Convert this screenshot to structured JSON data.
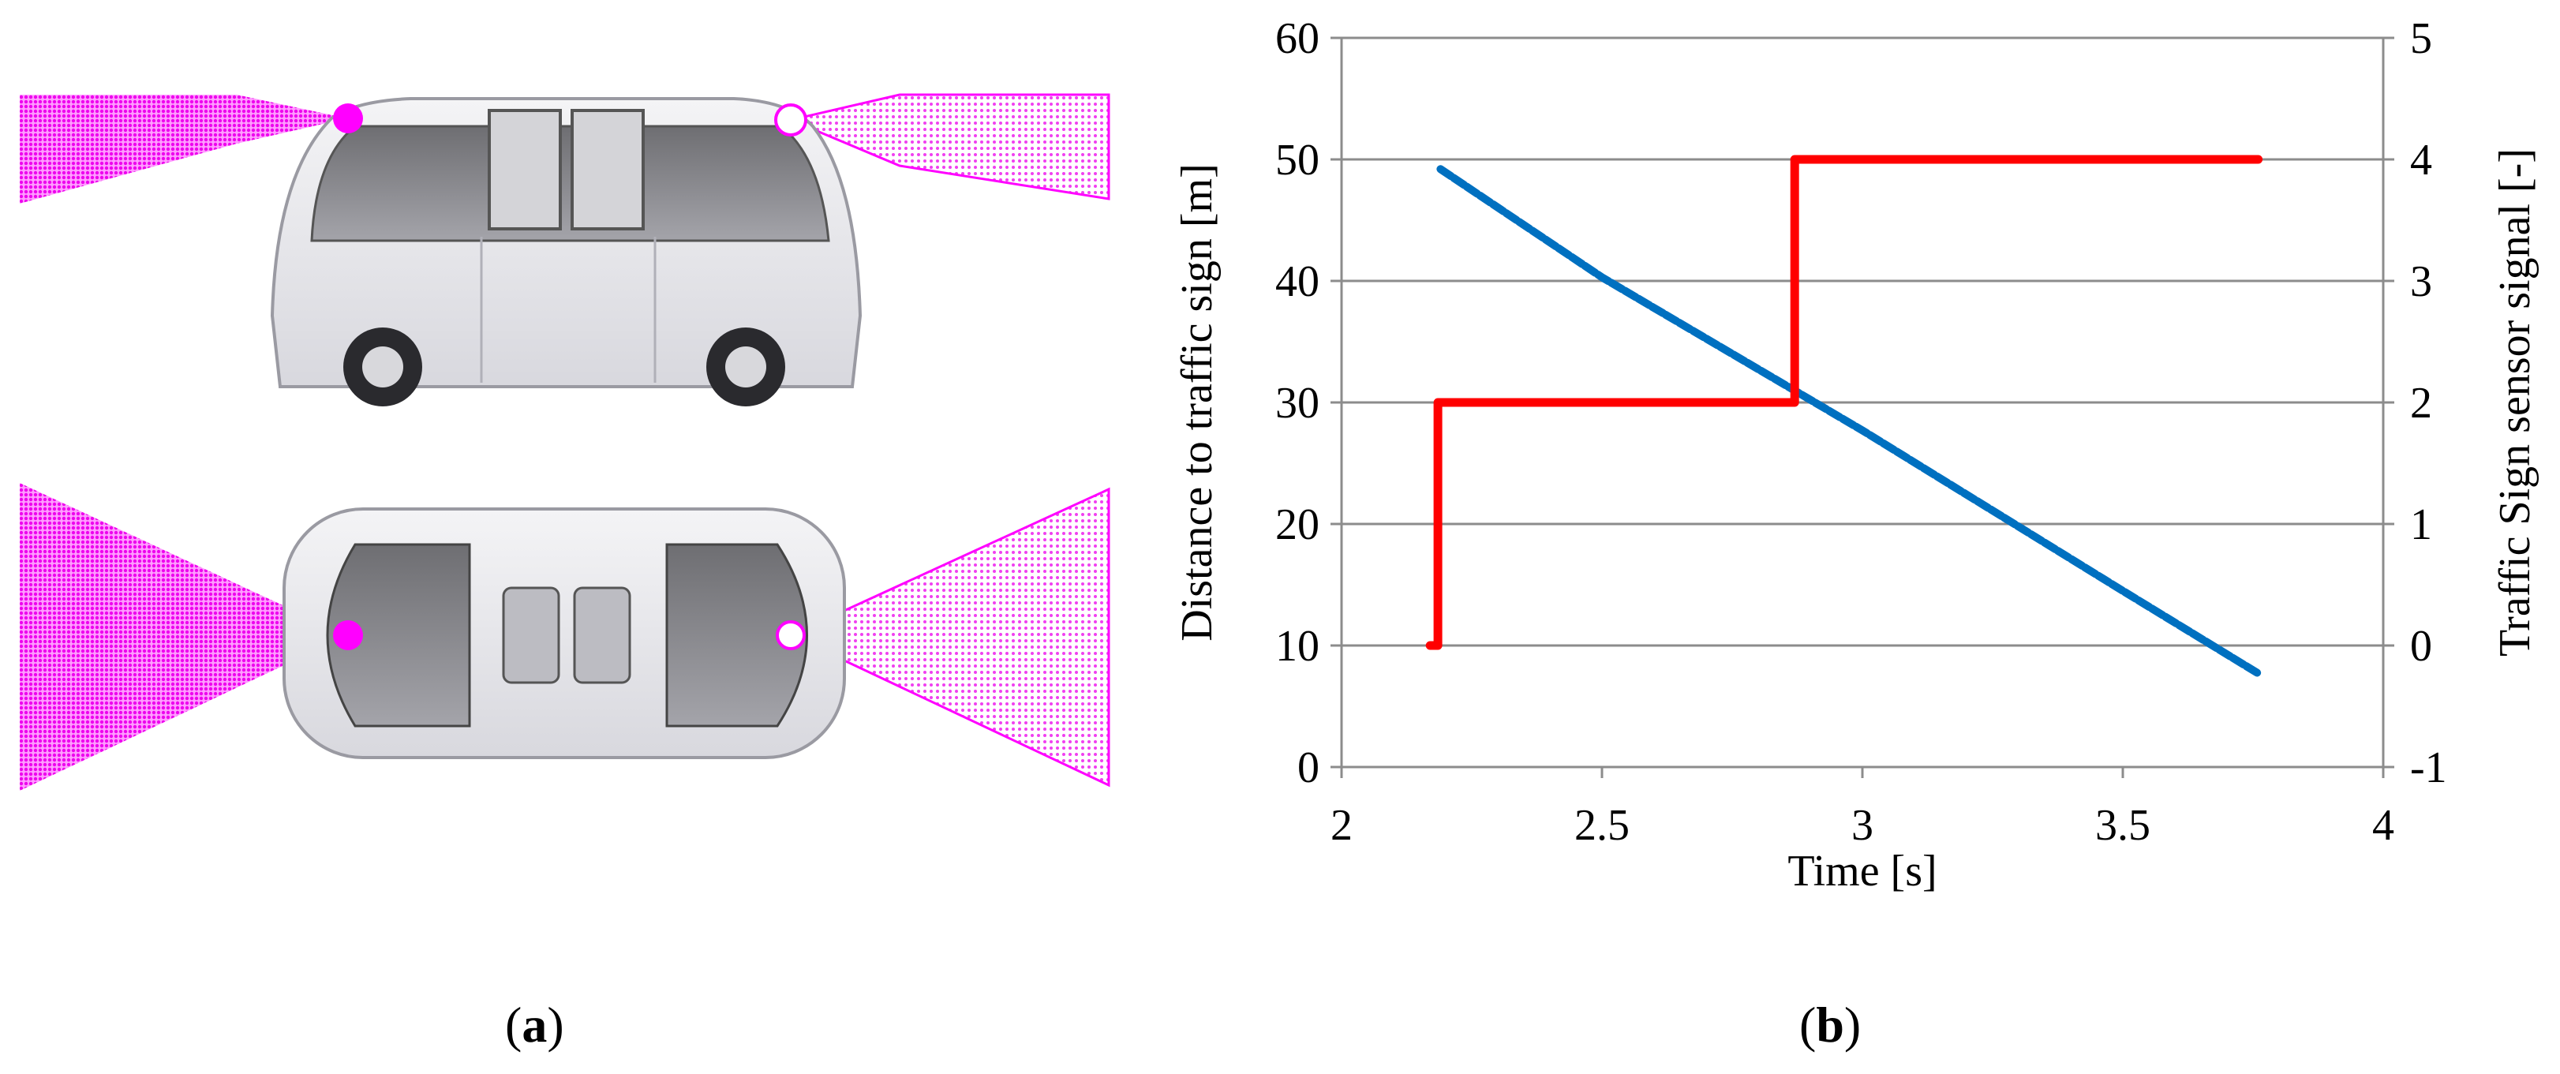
{
  "panels": {
    "a": {
      "letter": "a"
    },
    "b": {
      "letter": "b"
    }
  },
  "vehicle_illustration": {
    "views": [
      "side-view",
      "top-view"
    ],
    "sensor_color": "#ff00ff"
  },
  "chart_data": {
    "type": "line",
    "title": "",
    "xlabel": "Time [s]",
    "ylabel": "Distance to traffic sign [m]",
    "y2label": "Traffic Sign sensor signal [-]",
    "xlim": [
      2,
      4
    ],
    "ylim": [
      0,
      60
    ],
    "y2lim": [
      -1,
      5
    ],
    "x_ticks": [
      "2",
      "2.5",
      "3",
      "3.5",
      "4"
    ],
    "y_ticks": [
      "0",
      "10",
      "20",
      "30",
      "40",
      "50",
      "60"
    ],
    "y2_ticks": [
      "-1",
      "0",
      "1",
      "2",
      "3",
      "4",
      "5"
    ],
    "grid": "horizontal",
    "legend": "none",
    "series": [
      {
        "axis": "left",
        "color": "#0070c0",
        "points": [
          [
            2.19,
            49.2
          ],
          [
            2.5,
            40.3
          ],
          [
            3.0,
            27.7
          ],
          [
            3.5,
            14.5
          ],
          [
            3.76,
            7.7
          ]
        ]
      },
      {
        "axis": "right",
        "color": "#ff0000",
        "points": [
          [
            2.17,
            0
          ],
          [
            2.185,
            0
          ],
          [
            2.185,
            2
          ],
          [
            2.87,
            2
          ],
          [
            2.87,
            4
          ],
          [
            3.76,
            4
          ]
        ]
      }
    ]
  }
}
